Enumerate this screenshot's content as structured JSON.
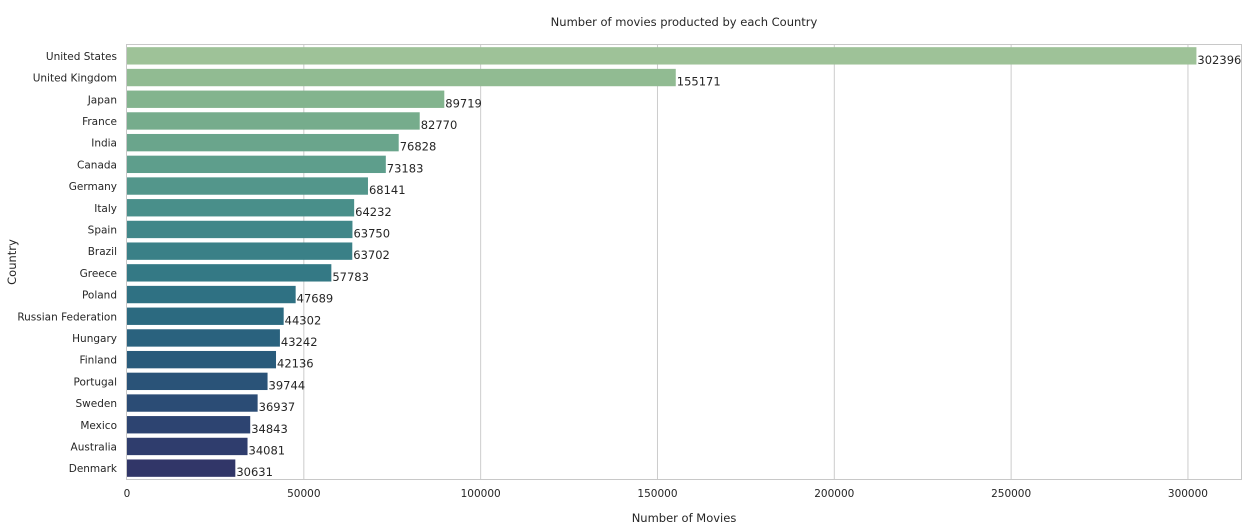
{
  "chart_data": {
    "type": "bar",
    "orientation": "horizontal",
    "title": "Number of movies producted by each Country",
    "xlabel": "Number of Movies",
    "ylabel": "Country",
    "xlim": [
      0,
      315000
    ],
    "xticks": [
      0,
      50000,
      100000,
      150000,
      200000,
      250000,
      300000
    ],
    "grid": "vertical",
    "legend": "none",
    "palette": "crest (light green to dark blue)",
    "categories": [
      "United States",
      "United Kingdom",
      "Japan",
      "France",
      "India",
      "Canada",
      "Germany",
      "Italy",
      "Spain",
      "Brazil",
      "Greece",
      "Poland",
      "Russian Federation",
      "Hungary",
      "Finland",
      "Portugal",
      "Sweden",
      "Mexico",
      "Australia",
      "Denmark"
    ],
    "values": [
      302396,
      155171,
      89719,
      82770,
      76828,
      73183,
      68141,
      64232,
      63750,
      63702,
      57783,
      47689,
      44302,
      43242,
      42136,
      39744,
      36937,
      34843,
      34081,
      30631
    ],
    "colors": [
      "#9ec298",
      "#91bb92",
      "#83b48e",
      "#76ac8c",
      "#6aa58c",
      "#5e9e8c",
      "#53968b",
      "#498f8a",
      "#418789",
      "#3a8087",
      "#347985",
      "#2f7183",
      "#2c6a80",
      "#2a627e",
      "#295b7b",
      "#2a5378",
      "#2b4c75",
      "#2d4471",
      "#2f3d6d",
      "#313668"
    ]
  }
}
